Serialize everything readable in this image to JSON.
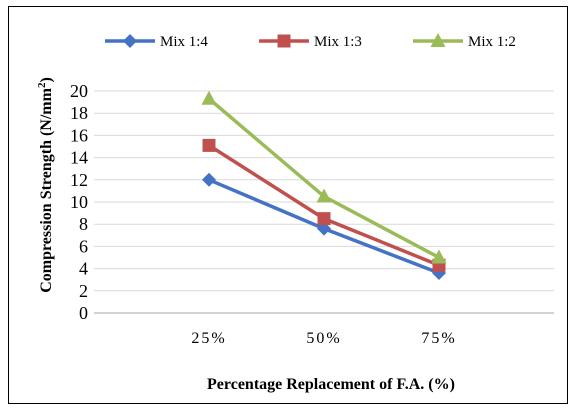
{
  "chart_data": {
    "type": "line",
    "title": "",
    "xlabel": "Percentage Replacement of F.A.  (%)",
    "ylabel": "Compression Strength  (N/mm",
    "ylabel_sup": "2",
    "ylabel_close": ")",
    "categories": [
      "25%",
      "50%",
      "75%"
    ],
    "ylim": [
      0,
      20
    ],
    "yticks": [
      "0",
      "2",
      "4",
      "6",
      "8",
      "10",
      "12",
      "14",
      "16",
      "18",
      "20"
    ],
    "grid": true,
    "legend_position": "top",
    "series": [
      {
        "name": "Mix 1:4",
        "values": [
          12.0,
          7.6,
          3.6
        ],
        "color": "#4472C4",
        "marker": "diamond"
      },
      {
        "name": "Mix 1:3",
        "values": [
          15.1,
          8.5,
          4.3
        ],
        "color": "#C0504D",
        "marker": "square"
      },
      {
        "name": "Mix 1:2",
        "values": [
          19.3,
          10.5,
          5.0
        ],
        "color": "#9BBB59",
        "marker": "triangle"
      }
    ]
  }
}
